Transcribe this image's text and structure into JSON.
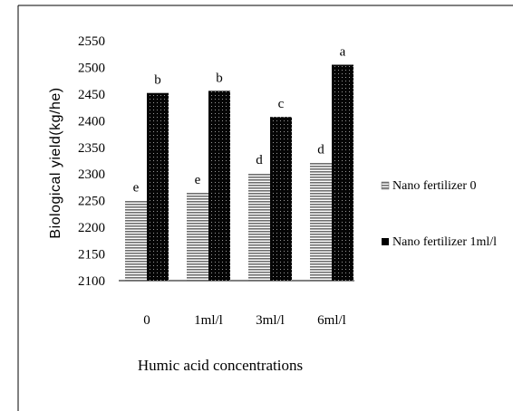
{
  "chart_data": {
    "type": "bar",
    "title": "",
    "xlabel": "Humic acid concentrations",
    "ylabel": "Biological yield(kg/he)",
    "ylim": [
      2100,
      2550
    ],
    "yticks": [
      2100,
      2150,
      2200,
      2250,
      2300,
      2350,
      2400,
      2450,
      2500,
      2550
    ],
    "categories": [
      "0",
      "1ml/l",
      "3ml/l",
      "6ml/l"
    ],
    "series": [
      {
        "name": "Nano fertilizer  0",
        "values": [
          2250,
          2265,
          2302,
          2322
        ],
        "labels": [
          "e",
          "e",
          "d",
          "d"
        ],
        "color": "#777777",
        "pattern": "horizontal-stripes"
      },
      {
        "name": "Nano fertilizer  1ml/l",
        "values": [
          2452,
          2456,
          2407,
          2505
        ],
        "labels": [
          "b",
          "b",
          "c",
          "a"
        ],
        "color": "#000000",
        "pattern": "dots"
      }
    ],
    "grid": false,
    "legend_position": "right"
  }
}
